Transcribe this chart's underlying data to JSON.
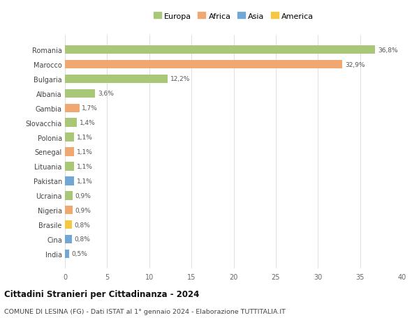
{
  "categories": [
    "India",
    "Cina",
    "Brasile",
    "Nigeria",
    "Ucraina",
    "Pakistan",
    "Lituania",
    "Senegal",
    "Polonia",
    "Slovacchia",
    "Gambia",
    "Albania",
    "Bulgaria",
    "Marocco",
    "Romania"
  ],
  "values": [
    0.5,
    0.8,
    0.8,
    0.9,
    0.9,
    1.1,
    1.1,
    1.1,
    1.1,
    1.4,
    1.7,
    3.6,
    12.2,
    32.9,
    36.8
  ],
  "labels": [
    "0,5%",
    "0,8%",
    "0,8%",
    "0,9%",
    "0,9%",
    "1,1%",
    "1,1%",
    "1,1%",
    "1,1%",
    "1,4%",
    "1,7%",
    "3,6%",
    "12,2%",
    "32,9%",
    "36,8%"
  ],
  "colors": [
    "#6fa8d6",
    "#6fa8d6",
    "#f5c842",
    "#f0a870",
    "#a8c878",
    "#6fa8d6",
    "#a8c878",
    "#f0a870",
    "#a8c878",
    "#a8c878",
    "#f0a870",
    "#a8c878",
    "#a8c878",
    "#f0a870",
    "#a8c878"
  ],
  "legend_labels": [
    "Europa",
    "Africa",
    "Asia",
    "America"
  ],
  "legend_colors": [
    "#a8c878",
    "#f0a870",
    "#6fa8d6",
    "#f5c842"
  ],
  "title": "Cittadini Stranieri per Cittadinanza - 2024",
  "subtitle": "COMUNE DI LESINA (FG) - Dati ISTAT al 1° gennaio 2024 - Elaborazione TUTTITALIA.IT",
  "xlim": [
    0,
    40
  ],
  "xticks": [
    0,
    5,
    10,
    15,
    20,
    25,
    30,
    35,
    40
  ],
  "background_color": "#ffffff",
  "bar_height": 0.6,
  "grid_color": "#e0e0e0"
}
